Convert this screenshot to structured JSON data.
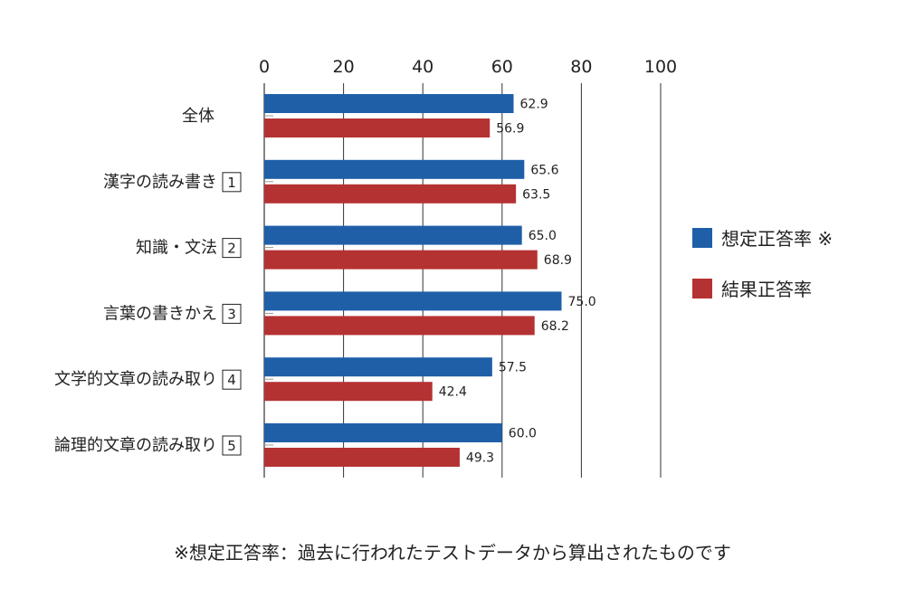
{
  "chart_data": {
    "type": "bar",
    "orientation": "horizontal",
    "categories": [
      {
        "label": "全体",
        "number": ""
      },
      {
        "label": "漢字の読み書き",
        "number": "1"
      },
      {
        "label": "知識・文法",
        "number": "2"
      },
      {
        "label": "言葉の書きかえ",
        "number": "3"
      },
      {
        "label": "文学的文章の読み取り",
        "number": "4"
      },
      {
        "label": "論理的文章の読み取り",
        "number": "5"
      }
    ],
    "series": [
      {
        "name": "想定正答率 ※",
        "color": "#1f5fa8",
        "values": [
          "62.9",
          "65.6",
          "65.0",
          "75.0",
          "57.5",
          "60.0"
        ]
      },
      {
        "name": "結果正答率",
        "color": "#b53232",
        "values": [
          "56.9",
          "63.5",
          "68.9",
          "68.2",
          "42.4",
          "49.3"
        ]
      }
    ],
    "xlim": [
      0,
      100
    ],
    "xticks": [
      "0",
      "20",
      "40",
      "60",
      "80",
      "100"
    ],
    "grid": true,
    "legend_position": "right"
  },
  "footnote": "※想定正答率：過去に行われたテストデータから算出されたものです"
}
